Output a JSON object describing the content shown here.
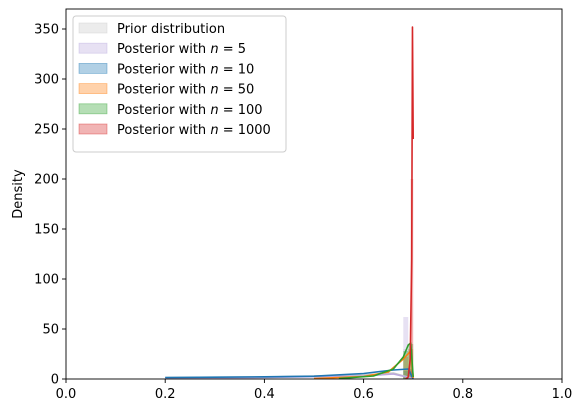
{
  "chart_data": {
    "type": "area",
    "title": "",
    "xlabel": "",
    "ylabel": "Density",
    "xlim": [
      0.0,
      1.0
    ],
    "ylim": [
      0,
      370
    ],
    "xticks": [
      "0.0",
      "0.2",
      "0.4",
      "0.6",
      "0.8",
      "1.0"
    ],
    "yticks": [
      "0",
      "50",
      "100",
      "150",
      "200",
      "250",
      "300",
      "350"
    ],
    "legend_position": "upper-left",
    "grid": false,
    "series": [
      {
        "name": "Prior distribution",
        "legend_prefix": "Prior distribution",
        "legend_n": "",
        "color": "#c8c8c8",
        "hist": [
          [
            0.68,
            0.69,
            30
          ]
        ],
        "curve": [
          [
            0.2,
            1.5
          ],
          [
            0.4,
            2.0
          ],
          [
            0.6,
            4.0
          ],
          [
            0.66,
            6.0
          ],
          [
            0.7,
            0.5
          ]
        ]
      },
      {
        "name": "Posterior with n = 5",
        "legend_prefix": "Posterior with ",
        "legend_n": "5",
        "color": "#b9a8dd",
        "hist": [
          [
            0.68,
            0.69,
            62
          ],
          [
            0.69,
            0.7,
            8
          ]
        ],
        "curve": [
          [
            0.2,
            1.0
          ],
          [
            0.4,
            1.5
          ],
          [
            0.6,
            3.0
          ],
          [
            0.66,
            5.0
          ],
          [
            0.7,
            0.5
          ]
        ]
      },
      {
        "name": "Posterior with n = 10",
        "legend_prefix": "Posterior with ",
        "legend_n": "10",
        "color": "#1f77b4",
        "hist": [
          [
            0.68,
            0.69,
            8
          ],
          [
            0.69,
            0.7,
            10
          ]
        ],
        "curve": [
          [
            0.2,
            1.5
          ],
          [
            0.3,
            1.8
          ],
          [
            0.4,
            2.2
          ],
          [
            0.5,
            2.8
          ],
          [
            0.6,
            5.5
          ],
          [
            0.66,
            9.0
          ],
          [
            0.69,
            10.0
          ],
          [
            0.7,
            0.0
          ]
        ]
      },
      {
        "name": "Posterior with n = 50",
        "legend_prefix": "Posterior with ",
        "legend_n": "50",
        "color": "#ff7f0e",
        "hist": [
          [
            0.68,
            0.69,
            22
          ],
          [
            0.69,
            0.7,
            30
          ]
        ],
        "curve": [
          [
            0.5,
            0.5
          ],
          [
            0.6,
            2.5
          ],
          [
            0.65,
            7.0
          ],
          [
            0.68,
            20.0
          ],
          [
            0.695,
            28.0
          ],
          [
            0.7,
            1.0
          ]
        ]
      },
      {
        "name": "Posterior with n = 100",
        "legend_prefix": "Posterior with ",
        "legend_n": "100",
        "color": "#2ca02c",
        "hist": [
          [
            0.68,
            0.69,
            28
          ],
          [
            0.69,
            0.7,
            35
          ]
        ],
        "curve": [
          [
            0.55,
            0.5
          ],
          [
            0.62,
            3.0
          ],
          [
            0.66,
            10.0
          ],
          [
            0.68,
            22.0
          ],
          [
            0.69,
            34.0
          ],
          [
            0.695,
            36.0
          ],
          [
            0.7,
            2.0
          ]
        ]
      },
      {
        "name": "Posterior with n = 1000",
        "legend_prefix": "Posterior with ",
        "legend_n": "1000",
        "color": "#d62728",
        "hist": [
          [
            0.695,
            0.7,
            200
          ]
        ],
        "curve": [
          [
            0.685,
            0.0
          ],
          [
            0.69,
            2.0
          ],
          [
            0.694,
            20.0
          ],
          [
            0.697,
            120.0
          ],
          [
            0.6985,
            352.0
          ],
          [
            0.7,
            240.0
          ]
        ]
      }
    ]
  }
}
